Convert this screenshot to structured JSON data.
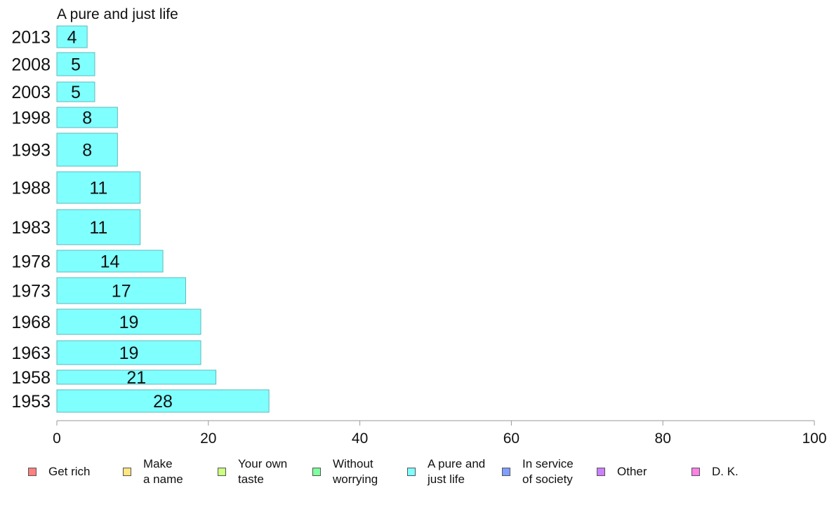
{
  "chart_data": {
    "type": "bar",
    "orientation": "horizontal",
    "title": "A pure and just life",
    "categories": [
      "2013",
      "2008",
      "2003",
      "1998",
      "1993",
      "1988",
      "1983",
      "1978",
      "1973",
      "1968",
      "1963",
      "1958",
      "1953"
    ],
    "values": [
      4,
      5,
      5,
      8,
      8,
      11,
      11,
      14,
      17,
      19,
      19,
      21,
      28
    ],
    "value_labels": [
      "4",
      "5",
      "5",
      "8",
      "8",
      "11",
      "11",
      "14",
      "17",
      "19",
      "19",
      "21",
      "28"
    ],
    "xlim": [
      0,
      100
    ],
    "x_ticks": [
      "0",
      "20",
      "40",
      "60",
      "80",
      "100"
    ],
    "grid": false,
    "bar_color": "#80ffff",
    "bar_edge_color": "#5fb8b8",
    "legend_position": "bottom",
    "legend": [
      {
        "label": "Get rich",
        "color": "#ff8080"
      },
      {
        "label": "Make\na name",
        "color": "#ffe680"
      },
      {
        "label": "Your own\ntaste",
        "color": "#ccff80"
      },
      {
        "label": "Without\nworrying",
        "color": "#80ff9f"
      },
      {
        "label": "A pure and\njust life",
        "color": "#80ffff"
      },
      {
        "label": "In service\nof society",
        "color": "#809fff"
      },
      {
        "label": "Other",
        "color": "#cc80ff"
      },
      {
        "label": "D. K.",
        "color": "#ff80e6"
      }
    ]
  }
}
